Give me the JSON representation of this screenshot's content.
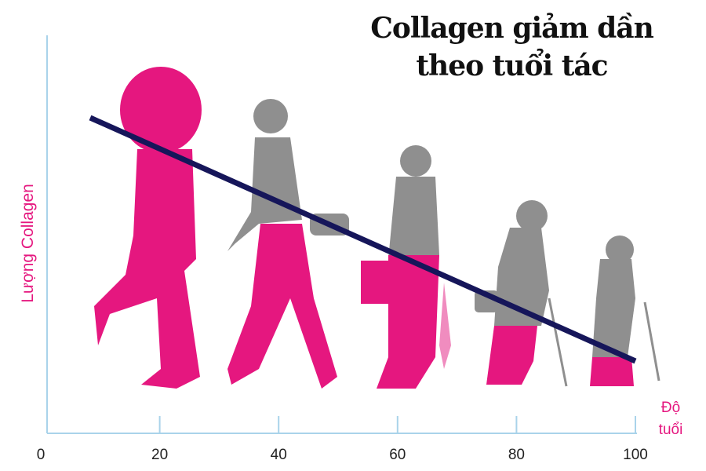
{
  "chart_data": {
    "type": "line",
    "title": "Collagen giảm dần theo tuổi tác",
    "ylabel": "Lượng Collagen",
    "xlabel": "Độ tuổi",
    "xlim": [
      0,
      100
    ],
    "xticks": [
      0,
      20,
      40,
      60,
      80,
      100
    ],
    "axis_color": "#a9d3ea",
    "label_color": "#e5177f"
  }
}
